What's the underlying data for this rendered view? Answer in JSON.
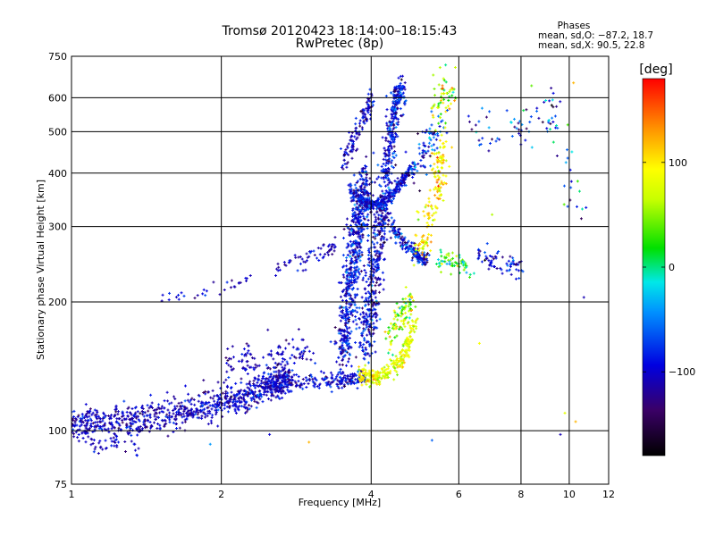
{
  "chart_data": {
    "type": "scatter",
    "title": "Tromsø 20120423 18:14:00–18:15:43",
    "subtitle": "RwPretec (8p)",
    "xlabel": "Frequency [MHz]",
    "ylabel": "Stationary phase Virtual Height [km]",
    "x_scale": "log",
    "y_scale": "log",
    "xlim": [
      1,
      12
    ],
    "ylim": [
      75,
      750
    ],
    "x_ticks": [
      1,
      2,
      4,
      6,
      8,
      10,
      12
    ],
    "x_tick_labels": [
      "1",
      "2",
      "4",
      "6",
      "8",
      "10",
      "12"
    ],
    "y_ticks": [
      75,
      100,
      200,
      300,
      400,
      500,
      600,
      750
    ],
    "y_tick_labels": [
      "75",
      "100",
      "200",
      "300",
      "400",
      "500",
      "600",
      "750"
    ],
    "grid": true,
    "phases_legend": {
      "heading": "Phases",
      "line_o": "mean, sd,O: −87.2, 18.7",
      "line_x": "mean, sd,X:  90.5, 22.8"
    },
    "colorbar": {
      "label": "[deg]",
      "range": [
        -180,
        180
      ],
      "ticks": [
        100,
        0,
        -100
      ],
      "tick_labels": [
        "100",
        "0",
        "−100"
      ]
    },
    "traces": [
      {
        "x": [
          1.0,
          1.1,
          1.25,
          1.4,
          1.6,
          1.8,
          2.0,
          2.2,
          2.4,
          2.6,
          2.75
        ],
        "y": [
          103,
          104,
          105,
          107,
          110,
          113,
          117,
          120,
          124,
          130,
          134
        ],
        "spread": 0.04,
        "n": 900,
        "phase": [
          -105,
          18
        ]
      },
      {
        "x": [
          1.05,
          1.2,
          1.35
        ],
        "y": [
          93,
          94,
          92
        ],
        "spread": 0.03,
        "n": 40,
        "phase": [
          -100,
          15
        ]
      },
      {
        "x": [
          2.4,
          2.8,
          3.2,
          3.5,
          3.7,
          3.9
        ],
        "y": [
          126,
          128,
          130,
          131,
          132,
          134
        ],
        "spread": 0.02,
        "n": 250,
        "phase": [
          -100,
          20
        ]
      },
      {
        "x": [
          2.0,
          2.3,
          2.7,
          3.0
        ],
        "y": [
          140,
          145,
          150,
          155
        ],
        "spread": 0.05,
        "n": 120,
        "phase": [
          -105,
          15
        ]
      },
      {
        "x": [
          3.5,
          3.6,
          3.7,
          3.8,
          3.9
        ],
        "y": [
          150,
          200,
          260,
          330,
          390
        ],
        "spread": 0.06,
        "n": 650,
        "phase": [
          -95,
          25
        ]
      },
      {
        "x": [
          3.9,
          4.0,
          4.1,
          4.2
        ],
        "y": [
          150,
          200,
          260,
          330
        ],
        "spread": 0.06,
        "n": 350,
        "phase": [
          -100,
          25
        ]
      },
      {
        "x": [
          3.6,
          3.8,
          4.0,
          4.2,
          4.4,
          4.6,
          4.8
        ],
        "y": [
          370,
          345,
          335,
          340,
          355,
          380,
          410
        ],
        "spread": 0.015,
        "n": 320,
        "phase": [
          -95,
          20
        ]
      },
      {
        "x": [
          3.5,
          3.7,
          3.9,
          4.0
        ],
        "y": [
          420,
          480,
          550,
          600
        ],
        "spread": 0.03,
        "n": 120,
        "phase": [
          -100,
          20
        ]
      },
      {
        "x": [
          4.2,
          4.3,
          4.4,
          4.5,
          4.6
        ],
        "y": [
          300,
          400,
          500,
          600,
          620
        ],
        "spread": 0.04,
        "n": 380,
        "phase": [
          -95,
          25
        ]
      },
      {
        "x": [
          4.4,
          4.6,
          4.8,
          5.0,
          5.2
        ],
        "y": [
          300,
          280,
          265,
          255,
          250
        ],
        "spread": 0.02,
        "n": 180,
        "phase": [
          -90,
          30
        ]
      },
      {
        "x": [
          3.8,
          4.0,
          4.2,
          4.5,
          4.7,
          4.9
        ],
        "y": [
          135,
          132,
          134,
          140,
          155,
          180
        ],
        "spread": 0.025,
        "n": 260,
        "phase": [
          85,
          20
        ]
      },
      {
        "x": [
          4.3,
          4.5,
          4.7,
          4.8
        ],
        "y": [
          160,
          180,
          190,
          200
        ],
        "spread": 0.04,
        "n": 100,
        "phase": [
          60,
          40
        ]
      },
      {
        "x": [
          5.0,
          5.2,
          5.4,
          5.5,
          5.6
        ],
        "y": [
          260,
          300,
          360,
          420,
          450
        ],
        "spread": 0.05,
        "n": 160,
        "phase": [
          100,
          25
        ]
      },
      {
        "x": [
          4.8,
          5.0,
          5.2,
          5.5
        ],
        "y": [
          400,
          430,
          470,
          520
        ],
        "spread": 0.05,
        "n": 90,
        "phase": [
          -80,
          40
        ]
      },
      {
        "x": [
          5.3,
          5.6,
          5.8
        ],
        "y": [
          560,
          600,
          640
        ],
        "spread": 0.06,
        "n": 60,
        "phase": [
          60,
          50
        ]
      },
      {
        "x": [
          5.4,
          5.7,
          6.0,
          6.4
        ],
        "y": [
          255,
          250,
          245,
          240
        ],
        "spread": 0.03,
        "n": 60,
        "phase": [
          20,
          40
        ]
      },
      {
        "x": [
          6.5,
          7.0,
          7.5,
          8.0
        ],
        "y": [
          260,
          250,
          245,
          240
        ],
        "spread": 0.03,
        "n": 70,
        "phase": [
          -100,
          25
        ]
      },
      {
        "x": [
          1.5,
          1.7,
          1.85,
          2.1,
          2.3
        ],
        "y": [
          205,
          208,
          212,
          220,
          230
        ],
        "spread": 0.02,
        "n": 30,
        "phase": [
          -100,
          15
        ]
      },
      {
        "x": [
          2.6,
          2.9,
          3.2,
          3.4
        ],
        "y": [
          240,
          250,
          260,
          270
        ],
        "spread": 0.025,
        "n": 60,
        "phase": [
          -105,
          15
        ]
      },
      {
        "x": [
          6.3,
          7.0,
          8.0,
          8.7,
          9.3
        ],
        "y": [
          520,
          480,
          500,
          540,
          560
        ],
        "spread": 0.06,
        "n": 55,
        "phase": [
          -85,
          40
        ]
      },
      {
        "x": [
          9.0,
          9.5,
          10.0,
          10.5
        ],
        "y": [
          600,
          500,
          400,
          300
        ],
        "spread": 0.06,
        "n": 35,
        "phase": [
          -60,
          60
        ]
      }
    ],
    "scattered_points": [
      [
        9.8,
        110,
        80
      ],
      [
        10.3,
        105,
        120
      ],
      [
        9.6,
        98,
        -110
      ],
      [
        5.3,
        95,
        -60
      ],
      [
        3.0,
        94,
        120
      ],
      [
        2.5,
        98,
        -100
      ],
      [
        1.9,
        93,
        -40
      ],
      [
        10.7,
        205,
        -110
      ],
      [
        6.6,
        160,
        90
      ],
      [
        10.2,
        650,
        120
      ],
      [
        8.4,
        640,
        40
      ],
      [
        7.0,
        320,
        60
      ]
    ]
  }
}
